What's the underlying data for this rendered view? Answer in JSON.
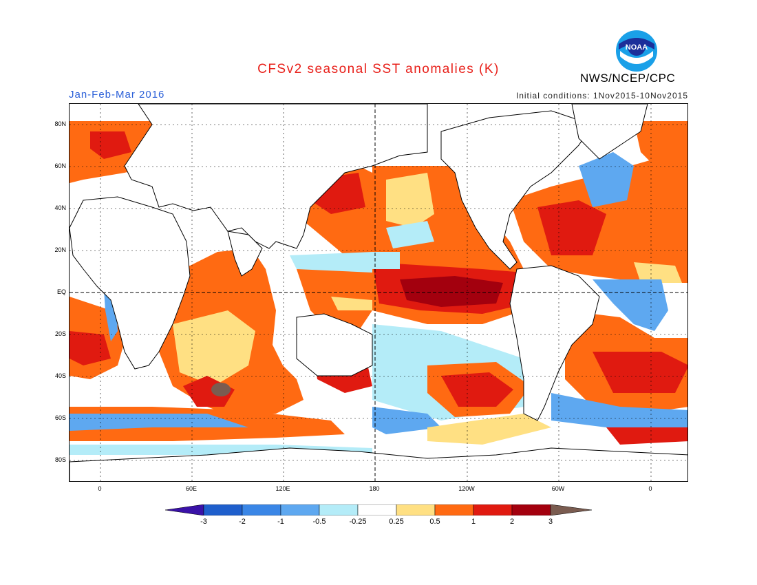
{
  "header": {
    "title": "CFSv2 seasonal SST anomalies (K)",
    "agency": "NWS/NCEP/CPC",
    "period": "Jan-Feb-Mar 2016",
    "initial_conditions": "Initial conditions: 1Nov2015-10Nov2015",
    "logo_text": "NOAA"
  },
  "axes": {
    "lat_labels": [
      "80N",
      "60N",
      "40N",
      "20N",
      "EQ",
      "20S",
      "40S",
      "60S",
      "80S"
    ],
    "lon_labels": [
      "0",
      "60E",
      "120E",
      "180",
      "120W",
      "60W",
      "0"
    ]
  },
  "colorbar": {
    "labels": [
      "-3",
      "-2",
      "-1",
      "-0.5",
      "-0.25",
      "0.25",
      "0.5",
      "1",
      "2",
      "3"
    ],
    "colors": [
      "#3a12a8",
      "#1f5fcc",
      "#3a86e6",
      "#5ea8f0",
      "#b4ecf8",
      "#ffffff",
      "#ffe083",
      "#ff6a12",
      "#e01a10",
      "#a3000e",
      "#7a5c50"
    ]
  },
  "map": {
    "projection": "equirectangular, longitude 20W to 20W+360, latitude 90S to 90N",
    "features": [
      "El Nino warm anomaly in eastern equatorial Pacific",
      "cool anomalies near western South Atlantic and Southern Ocean"
    ]
  }
}
